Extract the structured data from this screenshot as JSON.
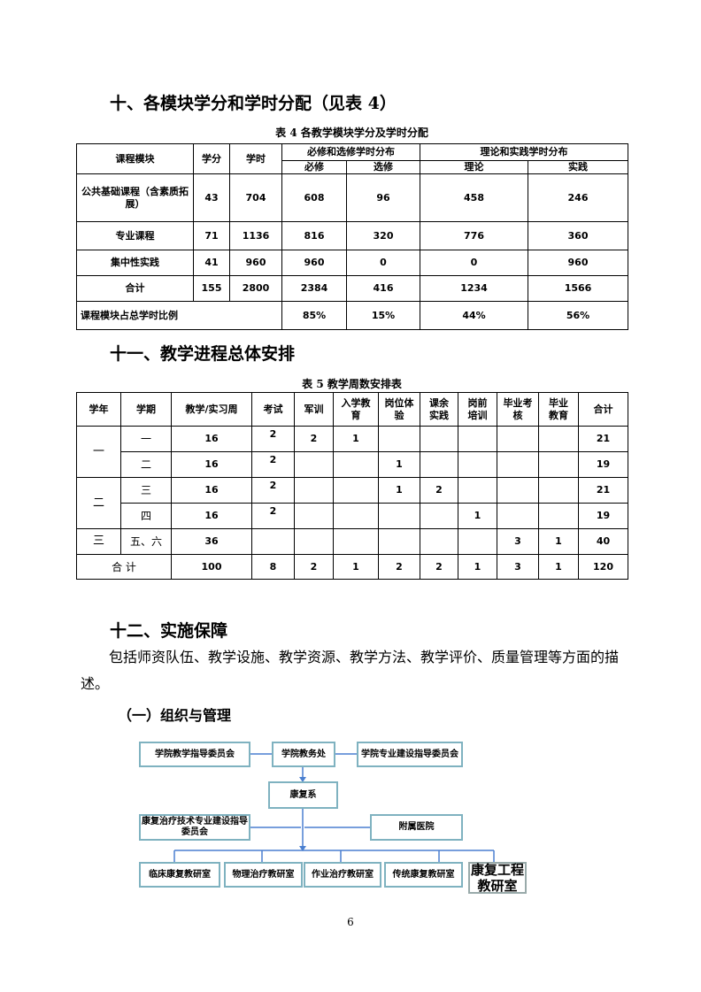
{
  "headings": {
    "s10": "十、各模块学分和学时分配（见表 4）",
    "s11": "十一、教学进程总体安排",
    "s12": "十二、实施保障",
    "sub1": "（一）组织与管理"
  },
  "table4": {
    "caption": "表 4   各教学模块学分及学时分配",
    "headers": {
      "module": "课程模块",
      "credits": "学分",
      "hours": "学时",
      "group1": "必修和选修学时分布",
      "required": "必修",
      "elective": "选修",
      "group2": "理论和实践学时分布",
      "theory": "理论",
      "practice": "实践"
    },
    "rows": [
      [
        "公共基础课程（含素质拓展）",
        "43",
        "704",
        "608",
        "96",
        "458",
        "246"
      ],
      [
        "专业课程",
        "71",
        "1136",
        "816",
        "320",
        "776",
        "360"
      ],
      [
        "集中性实践",
        "41",
        "960",
        "960",
        "0",
        "0",
        "960"
      ],
      [
        "合计",
        "155",
        "2800",
        "2384",
        "416",
        "1234",
        "1566"
      ]
    ],
    "ratio": {
      "label": "课程模块占总学时比例",
      "values": [
        "85%",
        "15%",
        "44%",
        "56%"
      ]
    }
  },
  "table5": {
    "caption": "表 5   教学周数安排表",
    "headers": [
      "学年",
      "学期",
      "教学/实习周",
      "考试",
      "军训",
      "入学教育",
      "岗位体验",
      "课余实践",
      "岗前培训",
      "毕业考核",
      "毕业教育",
      "合计"
    ],
    "years": [
      "一",
      "二",
      "三"
    ],
    "rows": [
      [
        "一",
        "16",
        "2",
        "2",
        "1",
        "",
        "",
        "",
        "",
        "",
        "21"
      ],
      [
        "二",
        "16",
        "2",
        "",
        "",
        "1",
        "",
        "",
        "",
        "",
        "19"
      ],
      [
        "三",
        "16",
        "2",
        "",
        "",
        "1",
        "2",
        "",
        "",
        "",
        "21"
      ],
      [
        "四",
        "16",
        "2",
        "",
        "",
        "",
        "",
        "1",
        "",
        "",
        "19"
      ],
      [
        "五、六",
        "36",
        "",
        "",
        "",
        "",
        "",
        "",
        "3",
        "1",
        "40"
      ]
    ],
    "total": [
      "合 计",
      "100",
      "8",
      "2",
      "1",
      "2",
      "2",
      "1",
      "3",
      "1",
      "120"
    ]
  },
  "section12": {
    "paragraph": "包括师资队伍、教学设施、教学资源、教学方法、教学评价、质量管理等方面的描述。"
  },
  "org_chart": {
    "top_left": "学院教学指导委员会",
    "top_center": "学院教务处",
    "top_right": "学院专业建设指导委员会",
    "department": "康复系",
    "committee": "康复治疗技术专业建设指导委员会",
    "hospital": "附属医院",
    "sections": [
      "临床康复教研室",
      "物理治疗教研室",
      "作业治疗教研室",
      "传统康复教研室",
      "康复工程教研室"
    ],
    "line_color": "#4a7fd0",
    "box_border": "#7fb2c0"
  },
  "page_number": "6"
}
